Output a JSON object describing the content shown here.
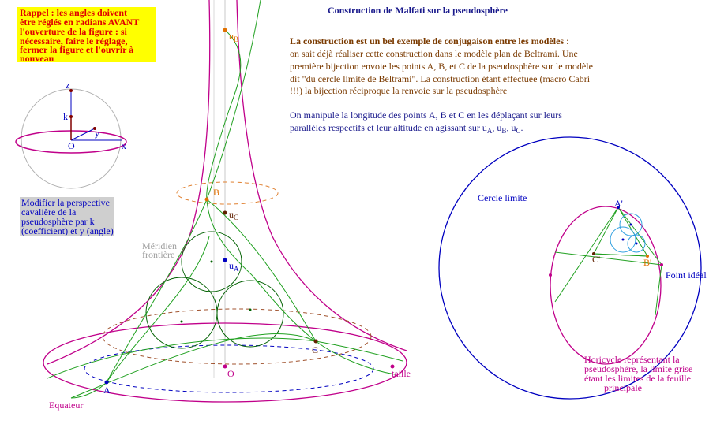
{
  "title": "Construction de Malfati sur la pseudosphère",
  "reminder": {
    "lines": [
      "Rappel : les angles doivent",
      "être réglés en radians AVANT",
      "l'ouverture de la figure : si",
      "nécessaire, faire le réglage,",
      "fermer la figure et l'ouvrir à",
      "nouveau"
    ]
  },
  "intro": {
    "heading": "La construction est un bel exemple de conjugaison entre les modèles",
    "heading_end": " :",
    "lines": [
      "on sait déjà réaliser cette construction dans le modèle plan de Beltrami. Une",
      "première bijection envoie les points A, B, et C de la pseudosphère sur le modèle",
      "dit \"du cercle limite de Beltrami\".  La construction étant effectuée (macro Cabri",
      "!!!) la bijection réciproque la renvoie sur la pseudosphère"
    ]
  },
  "manipulation": {
    "lines": [
      "On manipule la longitude des points A, B et C en les déplaçant sur leurs",
      "parallèles respectifs et leur altitude en agissant sur "
    ],
    "params": [
      {
        "base": "u",
        "sub": "A"
      },
      {
        "base": "u",
        "sub": "B"
      },
      {
        "base": "u",
        "sub": "C"
      }
    ],
    "separators": [
      ", ",
      ", ",
      "."
    ]
  },
  "perspective": {
    "lines": [
      "Modifier la perspective",
      "cavalière de la",
      "pseudosphère par k",
      "(coefficient) et y (angle)"
    ]
  },
  "axes": {
    "z": "z",
    "k": "k",
    "y": "y",
    "origin": "O",
    "x": "x"
  },
  "pseudosphere": {
    "uB": {
      "base": "u",
      "sub": "B"
    },
    "uC": {
      "base": "u",
      "sub": "C"
    },
    "uA": {
      "base": "u",
      "sub": "A"
    },
    "B": "B",
    "C": "C",
    "A": "A",
    "O": "O",
    "size": "taille",
    "equator": "Equateur",
    "meridian": [
      "Méridien",
      "frontière"
    ]
  },
  "beltrami": {
    "circle": "Cercle limite",
    "A": "A'",
    "B": "B'",
    "C": "C'",
    "ideal_point": "Point idéal",
    "horicycle": [
      "Horicycle représentant la",
      "pseudosphère, la limite grise",
      "étant les limites de la feuille",
      "principale"
    ]
  }
}
